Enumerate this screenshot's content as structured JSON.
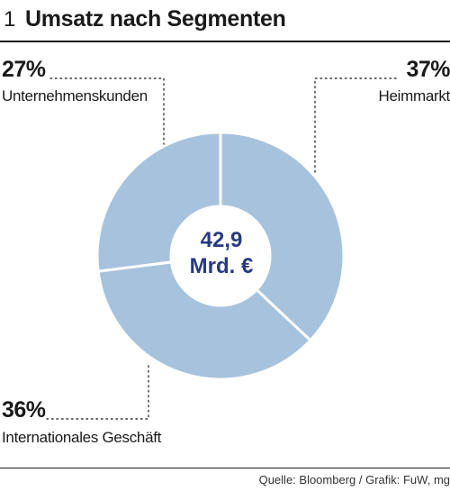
{
  "header": {
    "figure_number": "1",
    "title": "Umsatz nach Segmenten"
  },
  "center_label": {
    "value": "42,9",
    "unit": "Mrd. €"
  },
  "chart_data": {
    "type": "pie",
    "title": "Umsatz nach Segmenten",
    "total": "42,9 Mrd. €",
    "slices": [
      {
        "label": "Heimmarkt",
        "value": 37,
        "display": "37%"
      },
      {
        "label": "Internationales Geschäft",
        "value": 36,
        "display": "36%"
      },
      {
        "label": "Unternehmenskunden",
        "value": 27,
        "display": "27%"
      }
    ],
    "slice_color": "#a7c2dd",
    "separator_color": "#ffffff",
    "center_text_color": "#273a80"
  },
  "footer": {
    "source": "Quelle: Bloomberg / Grafik: FuW, mg"
  }
}
